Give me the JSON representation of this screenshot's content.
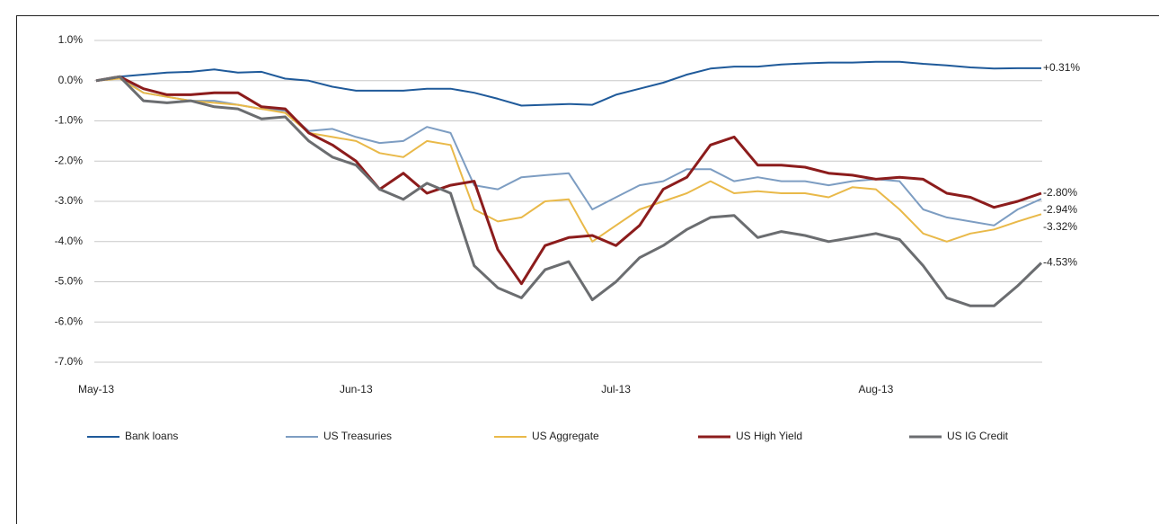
{
  "chart_data": {
    "type": "line",
    "categories": [
      "May-13",
      null,
      null,
      null,
      null,
      null,
      null,
      null,
      null,
      null,
      null,
      "Jun-13",
      null,
      null,
      null,
      null,
      null,
      null,
      null,
      null,
      null,
      null,
      "Jul-13",
      null,
      null,
      null,
      null,
      null,
      null,
      null,
      null,
      null,
      null,
      "Aug-13",
      null,
      null,
      null,
      null,
      null,
      null,
      null
    ],
    "ylim": [
      -7.0,
      1.0
    ],
    "yticks": [
      {
        "value": 1.0,
        "label": "1.0%"
      },
      {
        "value": 0.0,
        "label": "0.0%"
      },
      {
        "value": -1.0,
        "label": "-1.0%"
      },
      {
        "value": -2.0,
        "label": "-2.0%"
      },
      {
        "value": -3.0,
        "label": "-3.0%"
      },
      {
        "value": -4.0,
        "label": "-4.0%"
      },
      {
        "value": -5.0,
        "label": "-5.0%"
      },
      {
        "value": -6.0,
        "label": "-6.0%"
      },
      {
        "value": -7.0,
        "label": "-7.0%"
      }
    ],
    "grid": true,
    "legend": "bottom",
    "series": [
      {
        "name": "Bank loans",
        "color": "#1f5a9a",
        "end_label": "+0.31%",
        "values": [
          0,
          0.1,
          0.15,
          0.2,
          0.22,
          0.28,
          0.2,
          0.22,
          0.05,
          0.0,
          -0.15,
          -0.25,
          -0.25,
          -0.25,
          -0.2,
          -0.2,
          -0.3,
          -0.45,
          -0.62,
          -0.6,
          -0.58,
          -0.6,
          -0.35,
          -0.2,
          -0.05,
          0.15,
          0.3,
          0.35,
          0.35,
          0.4,
          0.43,
          0.45,
          0.45,
          0.47,
          0.47,
          0.42,
          0.38,
          0.33,
          0.3,
          0.31,
          0.31
        ]
      },
      {
        "name": "US Treasuries",
        "color": "#7d9dc2",
        "end_label": "-2.94%",
        "values": [
          0,
          0.1,
          -0.3,
          -0.4,
          -0.5,
          -0.5,
          -0.6,
          -0.7,
          -0.75,
          -1.25,
          -1.2,
          -1.4,
          -1.55,
          -1.5,
          -1.15,
          -1.3,
          -2.6,
          -2.7,
          -2.4,
          -2.35,
          -2.3,
          -3.2,
          -2.9,
          -2.6,
          -2.5,
          -2.2,
          -2.2,
          -2.5,
          -2.4,
          -2.5,
          -2.5,
          -2.6,
          -2.5,
          -2.45,
          -2.5,
          -3.2,
          -3.4,
          -3.5,
          -3.6,
          -3.2,
          -2.94
        ]
      },
      {
        "name": "US Aggregate",
        "color": "#e9b949",
        "end_label": "-3.32%",
        "values": [
          0,
          0.05,
          -0.3,
          -0.4,
          -0.5,
          -0.55,
          -0.6,
          -0.7,
          -0.8,
          -1.3,
          -1.4,
          -1.5,
          -1.8,
          -1.9,
          -1.5,
          -1.6,
          -3.2,
          -3.5,
          -3.4,
          -3.0,
          -2.95,
          -4.0,
          -3.6,
          -3.2,
          -3.0,
          -2.8,
          -2.5,
          -2.8,
          -2.75,
          -2.8,
          -2.8,
          -2.9,
          -2.65,
          -2.7,
          -3.2,
          -3.8,
          -4.0,
          -3.8,
          -3.7,
          -3.5,
          -3.32
        ]
      },
      {
        "name": "US High Yield",
        "color": "#8c1c1c",
        "end_label": "-2.80%",
        "values": [
          0,
          0.1,
          -0.2,
          -0.35,
          -0.35,
          -0.3,
          -0.3,
          -0.65,
          -0.7,
          -1.3,
          -1.6,
          -2.0,
          -2.7,
          -2.3,
          -2.8,
          -2.6,
          -2.5,
          -4.2,
          -5.05,
          -4.1,
          -3.9,
          -3.85,
          -4.1,
          -3.6,
          -2.7,
          -2.4,
          -1.6,
          -1.4,
          -2.1,
          -2.1,
          -2.15,
          -2.3,
          -2.35,
          -2.45,
          -2.4,
          -2.45,
          -2.8,
          -2.9,
          -3.15,
          -3.0,
          -2.8
        ]
      },
      {
        "name": "US IG Credit",
        "color": "#6b6d70",
        "end_label": "-4.53%",
        "values": [
          0,
          0.1,
          -0.5,
          -0.55,
          -0.5,
          -0.65,
          -0.7,
          -0.95,
          -0.9,
          -1.5,
          -1.9,
          -2.1,
          -2.7,
          -2.95,
          -2.55,
          -2.8,
          -4.6,
          -5.15,
          -5.4,
          -4.7,
          -4.5,
          -5.45,
          -5.0,
          -4.4,
          -4.1,
          -3.7,
          -3.4,
          -3.35,
          -3.9,
          -3.75,
          -3.85,
          -4.0,
          -3.9,
          -3.8,
          -3.95,
          -4.6,
          -5.4,
          -5.6,
          -5.6,
          -5.1,
          -4.53
        ]
      }
    ]
  }
}
